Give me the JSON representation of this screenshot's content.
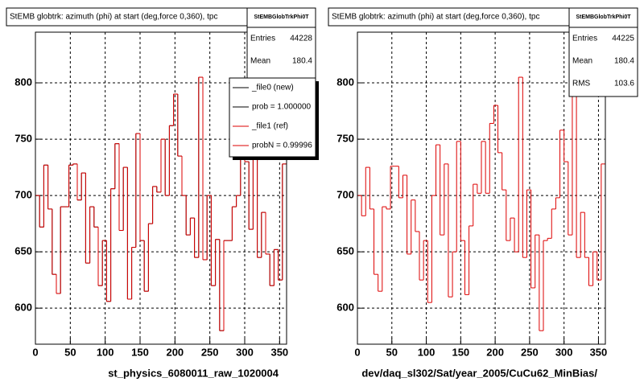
{
  "chart_data": [
    {
      "type": "histogram",
      "title": "StEMB globtrk: azimuth (phi) at start (deg,force 0,360), tpc",
      "x_label": "st_physics_6080011_raw_1020004",
      "bins": [
        0,
        6,
        12,
        18,
        24,
        30,
        36,
        42,
        48,
        54,
        60,
        66,
        72,
        78,
        84,
        90,
        96,
        102,
        108,
        114,
        120,
        126,
        132,
        138,
        144,
        150,
        156,
        162,
        168,
        174,
        180,
        186,
        192,
        198,
        204,
        210,
        216,
        222,
        228,
        234,
        240,
        246,
        252,
        258,
        264,
        270,
        276,
        282,
        288,
        294,
        300,
        306,
        312,
        318,
        324,
        330,
        336,
        342,
        348,
        354,
        360
      ],
      "series": [
        {
          "name": "_file0 (new)",
          "color": "#000000",
          "values": [
            700,
            672,
            727,
            688,
            630,
            613,
            690,
            690,
            727,
            728,
            696,
            720,
            640,
            690,
            672,
            620,
            660,
            606,
            706,
            746,
            669,
            725,
            608,
            654,
            755,
            660,
            615,
            675,
            708,
            703,
            750,
            700,
            762,
            790,
            735,
            700,
            665,
            680,
            645,
            805,
            643,
            700,
            620,
            661,
            580,
            660,
            660,
            690,
            700,
            760,
            730,
            670,
            825,
            645,
            685,
            648,
            620,
            652,
            625,
            728
          ]
        },
        {
          "name": "_file1 (ref)",
          "color": "#dd0000",
          "values": [
            700,
            672,
            727,
            688,
            630,
            613,
            690,
            690,
            727,
            728,
            696,
            720,
            640,
            690,
            672,
            620,
            660,
            606,
            706,
            746,
            669,
            725,
            608,
            654,
            755,
            660,
            615,
            675,
            708,
            703,
            750,
            700,
            762,
            790,
            735,
            700,
            665,
            680,
            645,
            805,
            643,
            700,
            620,
            661,
            580,
            660,
            660,
            690,
            700,
            760,
            730,
            670,
            825,
            645,
            685,
            648,
            620,
            652,
            625,
            728
          ]
        }
      ],
      "legend_notes": [
        "prob = 1.000000",
        "probN = 0.99996"
      ],
      "stats": {
        "name": "StEMBGlobTrkPhi0T",
        "rows": [
          {
            "label": "Entries",
            "value": 44228
          },
          {
            "label": "Mean",
            "value": 180.4
          }
        ]
      },
      "xlim": [
        0,
        360
      ],
      "xticks": [
        0,
        50,
        100,
        150,
        200,
        250,
        300,
        350
      ],
      "ylim": [
        568,
        845
      ],
      "yticks": [
        600,
        650,
        700,
        750,
        800
      ],
      "grid": true
    },
    {
      "type": "histogram",
      "title": "StEMB globtrk: azimuth (phi) at start (deg,force 0,360), tpc",
      "x_label": "dev/daq_sl302/Sat/year_2005/CuCu62_MinBias/",
      "bins": [
        0,
        6,
        12,
        18,
        24,
        30,
        36,
        42,
        48,
        54,
        60,
        66,
        72,
        78,
        84,
        90,
        96,
        102,
        108,
        114,
        120,
        126,
        132,
        138,
        144,
        150,
        156,
        162,
        168,
        174,
        180,
        186,
        192,
        198,
        204,
        210,
        216,
        222,
        228,
        234,
        240,
        246,
        252,
        258,
        264,
        270,
        276,
        282,
        288,
        294,
        300,
        306,
        312,
        318,
        324,
        330,
        336,
        342,
        348,
        354,
        360
      ],
      "series": [
        {
          "color": "#dd0000",
          "values": [
            700,
            682,
            725,
            688,
            630,
            615,
            690,
            688,
            726,
            726,
            698,
            718,
            648,
            696,
            668,
            625,
            660,
            605,
            700,
            745,
            665,
            728,
            610,
            650,
            748,
            660,
            612,
            673,
            710,
            702,
            748,
            702,
            764,
            780,
            738,
            705,
            660,
            680,
            650,
            805,
            645,
            705,
            618,
            665,
            580,
            660,
            662,
            688,
            698,
            758,
            730,
            665,
            822,
            645,
            685,
            645,
            620,
            650,
            625,
            728
          ]
        }
      ],
      "stats": {
        "name": "StEMBGlobTrkPhi0T",
        "rows": [
          {
            "label": "Entries",
            "value": 44225
          },
          {
            "label": "Mean",
            "value": 180.4
          },
          {
            "label": "RMS",
            "value": 103.6
          }
        ]
      },
      "xlim": [
        0,
        360
      ],
      "xticks": [
        0,
        50,
        100,
        150,
        200,
        250,
        300,
        350
      ],
      "ylim": [
        568,
        845
      ],
      "yticks": [
        600,
        650,
        700,
        750,
        800
      ],
      "grid": true
    }
  ]
}
